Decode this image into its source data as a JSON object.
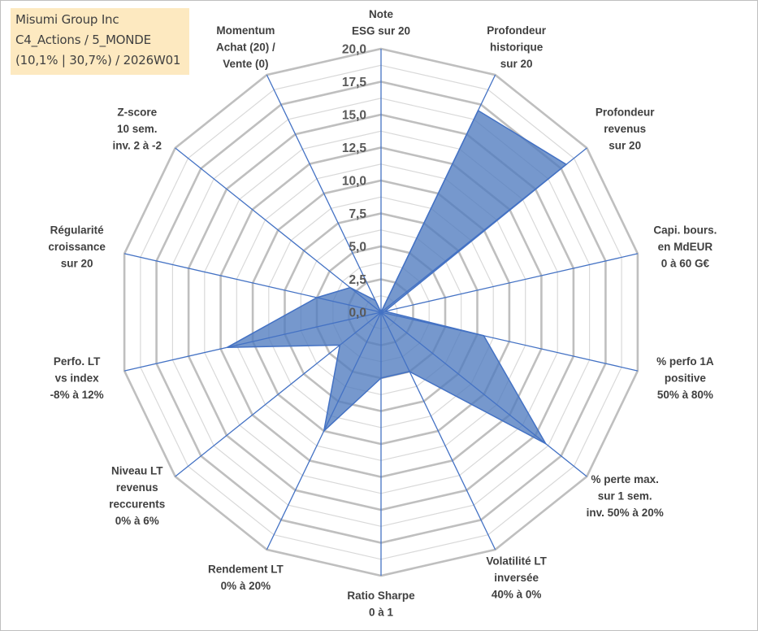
{
  "header": {
    "line1": "Misumi Group Inc",
    "line2": "C4_Actions / 5_MONDE",
    "line3": "(10,1% | 30,7%) / 2026W01"
  },
  "colors": {
    "title_background": "#fde9c0",
    "series_fill": "#4f7bbf",
    "series_stroke": "#4472c4",
    "spoke": "#4472c4",
    "grid_major": "#bfbfbf",
    "grid_minor": "#d9d9d9"
  },
  "chart_data": {
    "type": "radar",
    "title": "",
    "scale": {
      "min": 0,
      "max": 20,
      "major_step": 2.5,
      "minor_step": 1.25,
      "tick_labels": [
        "0,0",
        "2,5",
        "5,0",
        "7,5",
        "10,0",
        "12,5",
        "15,0",
        "17,5",
        "20,0"
      ]
    },
    "grid": true,
    "legend": "none",
    "axes": [
      {
        "lines": [
          "Note",
          "ESG sur 20"
        ],
        "value": 0
      },
      {
        "lines": [
          "Profondeur",
          "historique",
          "sur 20"
        ],
        "value": 17
      },
      {
        "lines": [
          "Profondeur",
          "revenus",
          "sur 20"
        ],
        "value": 18
      },
      {
        "lines": [
          "Capi. bours.",
          "en MdEUR",
          "0 à 60 G€"
        ],
        "value": 0.3
      },
      {
        "lines": [
          "% perfo 1A",
          "positive",
          "50% à 80%"
        ],
        "value": 8
      },
      {
        "lines": [
          "% perte max.",
          "sur 1 sem.",
          "inv. 50% à 20%"
        ],
        "value": 16
      },
      {
        "lines": [
          "Volatilité LT",
          "inversée",
          "40% à 0%"
        ],
        "value": 5
      },
      {
        "lines": [
          "Ratio Sharpe",
          "0 à 1"
        ],
        "value": 5
      },
      {
        "lines": [
          "Rendement LT",
          "0% à 20%"
        ],
        "value": 10
      },
      {
        "lines": [
          "Niveau LT",
          "revenus",
          "reccurents",
          "0% à 6%"
        ],
        "value": 4
      },
      {
        "lines": [
          "Perfo. LT",
          "vs index",
          "-8% à 12%"
        ],
        "value": 12
      },
      {
        "lines": [
          "Régularité",
          "croissance",
          "sur 20"
        ],
        "value": 5
      },
      {
        "lines": [
          "Z-score",
          "10 sem.",
          "inv. 2 à -2"
        ],
        "value": 3
      },
      {
        "lines": [
          "Momentum",
          "Achat (20) /",
          "Vente (0)"
        ],
        "value": 1
      }
    ]
  }
}
